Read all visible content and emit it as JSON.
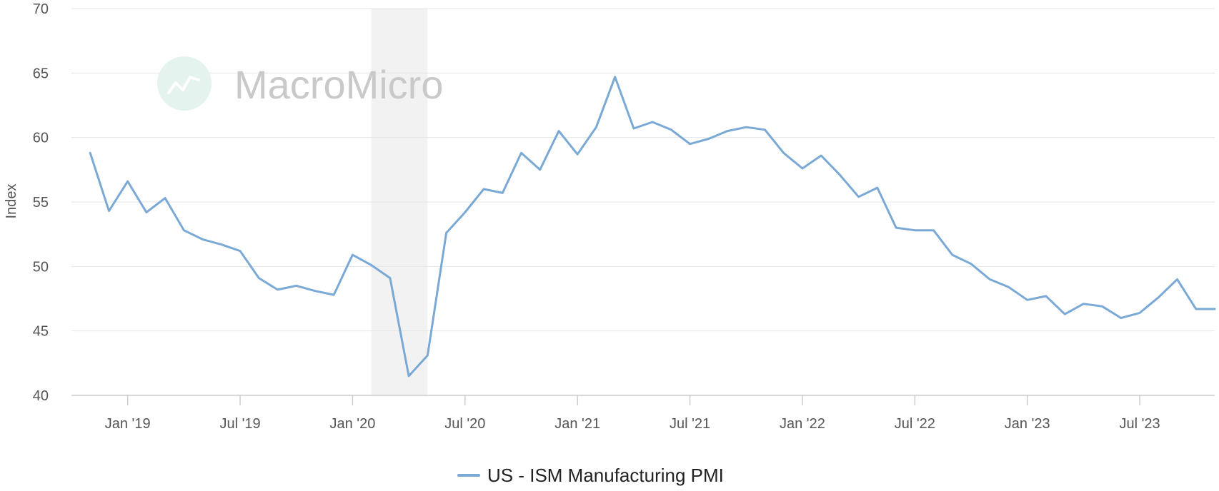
{
  "watermark": {
    "text": "MacroMicro"
  },
  "chart_data": {
    "type": "line",
    "ylabel": "Index",
    "ylim": [
      40,
      70
    ],
    "yticks": [
      40,
      45,
      50,
      55,
      60,
      65,
      70
    ],
    "xlim": [
      "2018-10",
      "2023-11"
    ],
    "xticks": [
      {
        "date": "2019-01",
        "label": "Jan '19"
      },
      {
        "date": "2019-07",
        "label": "Jul '19"
      },
      {
        "date": "2020-01",
        "label": "Jan '20"
      },
      {
        "date": "2020-07",
        "label": "Jul '20"
      },
      {
        "date": "2021-01",
        "label": "Jan '21"
      },
      {
        "date": "2021-07",
        "label": "Jul '21"
      },
      {
        "date": "2022-01",
        "label": "Jan '22"
      },
      {
        "date": "2022-07",
        "label": "Jul '22"
      },
      {
        "date": "2023-01",
        "label": "Jan '23"
      },
      {
        "date": "2023-07",
        "label": "Jul '23"
      }
    ],
    "shaded_region": {
      "start": "2020-02",
      "end": "2020-05",
      "color": "#f2f2f2"
    },
    "grid": true,
    "legend": "bottom-center",
    "series": [
      {
        "name": "US - ISM Manufacturing PMI",
        "color": "#7aa9d6",
        "x": [
          "2018-11",
          "2018-12",
          "2019-01",
          "2019-02",
          "2019-03",
          "2019-04",
          "2019-05",
          "2019-06",
          "2019-07",
          "2019-08",
          "2019-09",
          "2019-10",
          "2019-11",
          "2019-12",
          "2020-01",
          "2020-02",
          "2020-03",
          "2020-04",
          "2020-05",
          "2020-06",
          "2020-07",
          "2020-08",
          "2020-09",
          "2020-10",
          "2020-11",
          "2020-12",
          "2021-01",
          "2021-02",
          "2021-03",
          "2021-04",
          "2021-05",
          "2021-06",
          "2021-07",
          "2021-08",
          "2021-09",
          "2021-10",
          "2021-11",
          "2021-12",
          "2022-01",
          "2022-02",
          "2022-03",
          "2022-04",
          "2022-05",
          "2022-06",
          "2022-07",
          "2022-08",
          "2022-09",
          "2022-10",
          "2022-11",
          "2022-12",
          "2023-01",
          "2023-02",
          "2023-03",
          "2023-04",
          "2023-05",
          "2023-06",
          "2023-07",
          "2023-08",
          "2023-09",
          "2023-10",
          "2023-11"
        ],
        "values": [
          58.8,
          54.3,
          56.6,
          54.2,
          55.3,
          52.8,
          52.1,
          51.7,
          51.2,
          49.1,
          48.2,
          48.5,
          48.1,
          47.8,
          50.9,
          50.1,
          49.1,
          41.5,
          43.1,
          52.6,
          54.2,
          56.0,
          55.7,
          58.8,
          57.5,
          60.5,
          58.7,
          60.8,
          64.7,
          60.7,
          61.2,
          60.6,
          59.5,
          59.9,
          60.5,
          60.8,
          60.6,
          58.8,
          57.6,
          58.6,
          57.1,
          55.4,
          56.1,
          53.0,
          52.8,
          52.8,
          50.9,
          50.2,
          49.0,
          48.4,
          47.4,
          47.7,
          46.3,
          47.1,
          46.9,
          46.0,
          46.4,
          47.6,
          49.0,
          46.7,
          46.7
        ]
      }
    ]
  }
}
